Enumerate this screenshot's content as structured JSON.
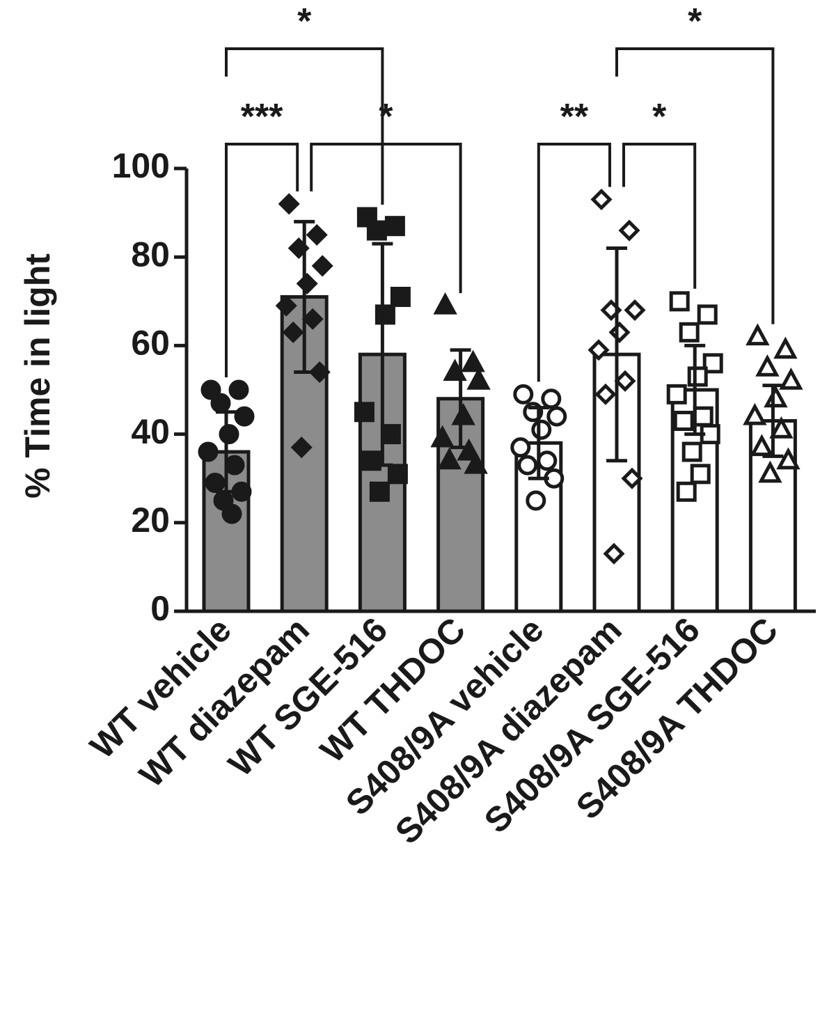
{
  "chart_data": {
    "type": "bar",
    "y_label": "% Time in light",
    "categories": [
      "WT vehicle",
      "WT diazepam",
      "WT SGE-516",
      "WT THDOC",
      "S408/9A vehicle",
      "S408/9A diazepam",
      "S408/9A SGE-516",
      "S408/9A THDOC"
    ],
    "values": [
      36,
      71,
      58,
      48,
      38,
      58,
      50,
      43
    ],
    "errors": [
      9,
      17,
      25,
      11,
      8,
      24,
      10,
      8
    ],
    "bar_colors": [
      "#8c8c8c",
      "#8c8c8c",
      "#8c8c8c",
      "#8c8c8c",
      "#ffffff",
      "#ffffff",
      "#ffffff",
      "#ffffff"
    ],
    "markers": [
      "circle",
      "diamond",
      "square",
      "triangle",
      "circle",
      "diamond",
      "square",
      "triangle"
    ],
    "marker_filled": [
      true,
      true,
      true,
      true,
      false,
      false,
      false,
      false
    ],
    "points": [
      [
        50,
        50,
        47,
        44,
        40,
        36,
        33,
        29,
        27,
        25,
        22
      ],
      [
        92,
        85,
        82,
        78,
        74,
        69,
        66,
        63,
        54,
        37
      ],
      [
        89,
        87,
        86,
        71,
        67,
        45,
        40,
        34,
        31,
        27
      ],
      [
        69,
        56,
        54,
        52,
        44,
        39,
        36,
        34,
        33
      ],
      [
        49,
        48,
        45,
        44,
        41,
        37,
        34,
        33,
        30,
        25
      ],
      [
        93,
        86,
        68,
        68,
        63,
        59,
        52,
        49,
        30,
        13
      ],
      [
        70,
        67,
        63,
        56,
        53,
        49,
        44,
        43,
        40,
        36,
        31,
        27
      ],
      [
        62,
        59,
        55,
        52,
        48,
        44,
        41,
        37,
        34,
        31
      ]
    ],
    "comparisons": [
      {
        "from": 0,
        "to": 1,
        "label": "***"
      },
      {
        "from": 1,
        "to": 3,
        "label": "*"
      },
      {
        "from": 4,
        "to": 5,
        "label": "**"
      },
      {
        "from": 5,
        "to": 6,
        "label": "*"
      },
      {
        "from": 0,
        "to": 2,
        "label": "*"
      },
      {
        "from": 5,
        "to": 7,
        "label": "*"
      }
    ],
    "ylim": [
      0,
      100
    ],
    "yticks": [
      0,
      20,
      40,
      60,
      80,
      100
    ]
  }
}
